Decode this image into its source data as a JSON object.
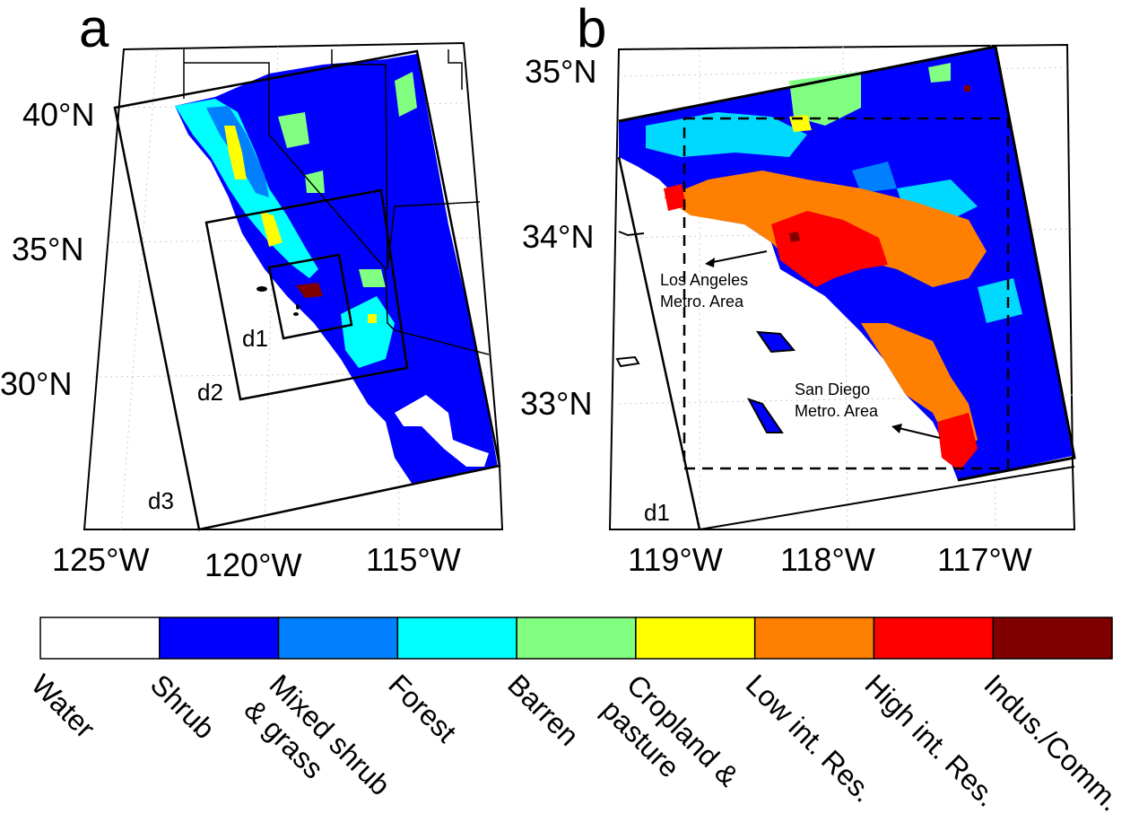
{
  "panel_a": {
    "letter": "a",
    "lat_ticks": [
      "40°N",
      "35°N",
      "30°N"
    ],
    "lon_ticks": [
      "125°W",
      "120°W",
      "115°W"
    ],
    "domains": [
      "d1",
      "d2",
      "d3"
    ]
  },
  "panel_b": {
    "letter": "b",
    "lat_ticks": [
      "35°N",
      "34°N",
      "33°N"
    ],
    "lon_ticks": [
      "119°W",
      "118°W",
      "117°W"
    ],
    "domain": "d1",
    "callouts": [
      {
        "line1": "Los Angeles",
        "line2": "Metro. Area"
      },
      {
        "line1": "San Diego",
        "line2": "Metro. Area"
      }
    ]
  },
  "legend": {
    "classes": [
      {
        "label": "Water",
        "color": "#ffffff"
      },
      {
        "label": "Shrub",
        "color": "#0000ff"
      },
      {
        "label": "Mixed shrub",
        "label2": "& grass",
        "color": "#0080ff"
      },
      {
        "label": "Forest",
        "color": "#00ffff"
      },
      {
        "label": "Barren",
        "color": "#80ff80"
      },
      {
        "label": "Cropland &",
        "label2": "pasture",
        "color": "#ffff00"
      },
      {
        "label": "Low int. Res.",
        "color": "#ff8000"
      },
      {
        "label": "High int. Res.",
        "color": "#ff0000"
      },
      {
        "label": "Indus./Comm.",
        "color": "#800000"
      }
    ]
  }
}
